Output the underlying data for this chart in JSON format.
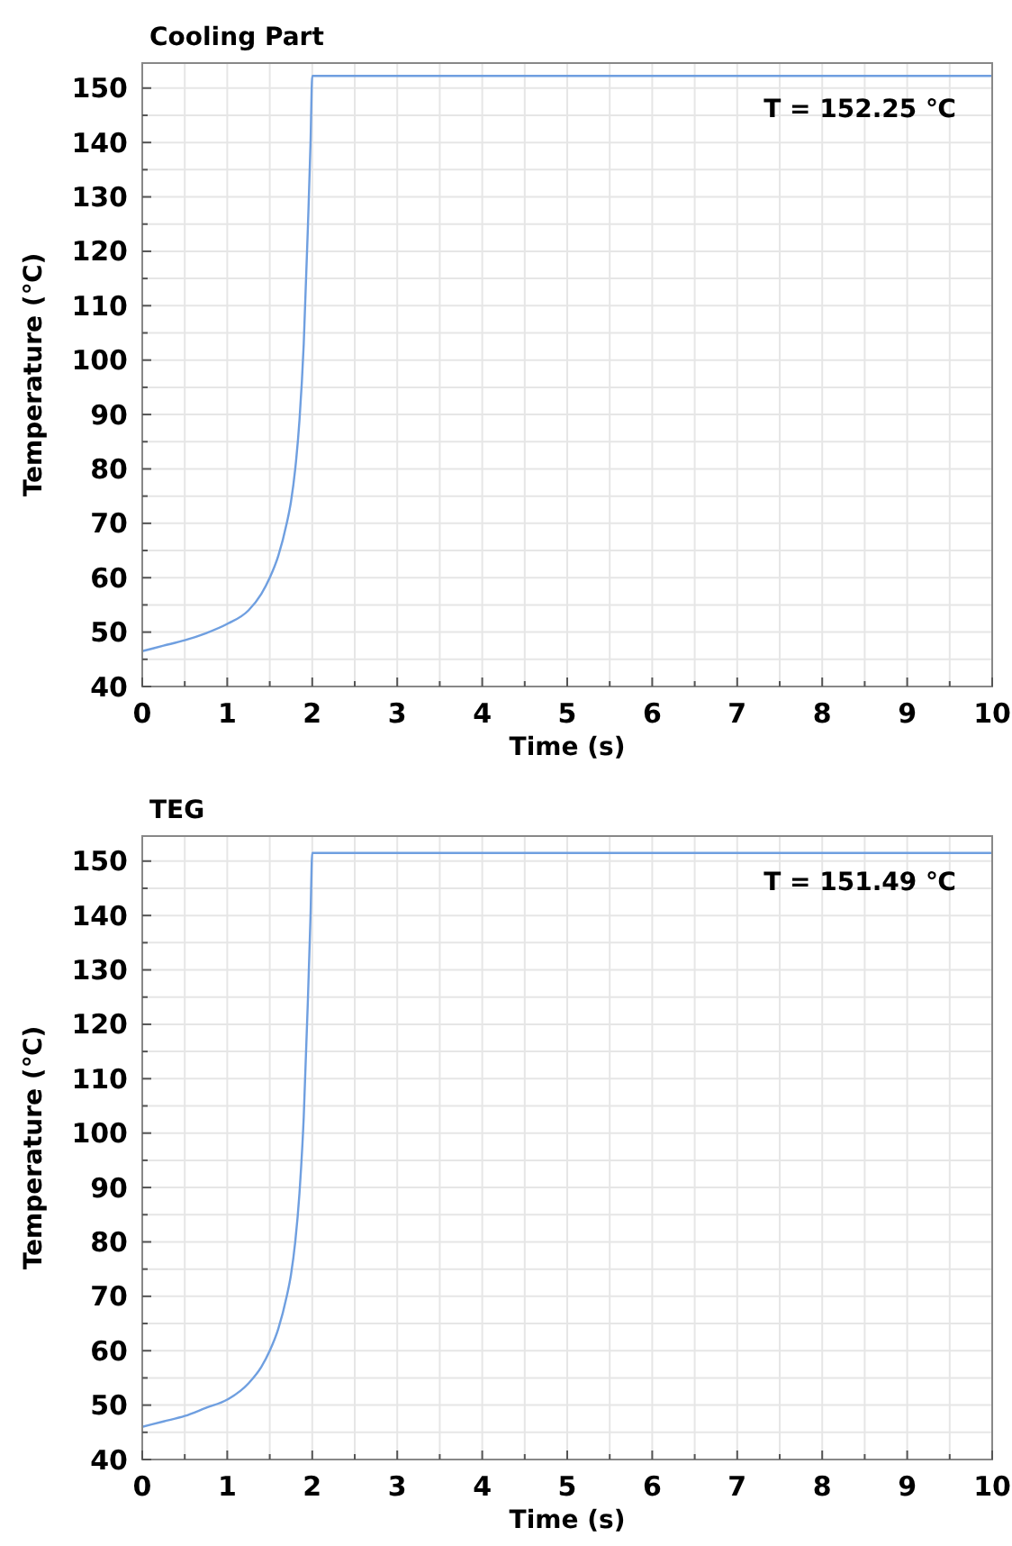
{
  "chart_data": [
    {
      "type": "line",
      "title": "Cooling Part",
      "xlabel": "Time (s)",
      "ylabel": "Temperature (℃)",
      "annotations": [
        "T =  152.25 ℃"
      ],
      "x": [
        0,
        0.25,
        0.5,
        0.75,
        1,
        1.25,
        1.4,
        1.5,
        1.6,
        1.7,
        1.75,
        1.8,
        1.85,
        1.9,
        1.95,
        1.98,
        2,
        10
      ],
      "series": [
        {
          "color": "#6f9fe0",
          "values": [
            46.5,
            47.5,
            48.5,
            49.8,
            51.5,
            54,
            57,
            60,
            64,
            70,
            74,
            80,
            89,
            103,
            125,
            140,
            152.25,
            152.25
          ]
        }
      ],
      "xlim": [
        0,
        10
      ],
      "ylim": [
        40,
        154.6
      ],
      "xticks": [
        0,
        {
          "value": 0.5,
          "label": null
        },
        1,
        {
          "value": 1.5,
          "label": null
        },
        2,
        {
          "value": 2.5,
          "label": null
        },
        3,
        {
          "value": 3.5,
          "label": null
        },
        4,
        {
          "value": 4.5,
          "label": null
        },
        5,
        {
          "value": 5.5,
          "label": null
        },
        6,
        {
          "value": 6.5,
          "label": null
        },
        7,
        {
          "value": 7.5,
          "label": null
        },
        8,
        {
          "value": 8.5,
          "label": null
        },
        9,
        {
          "value": 9.5,
          "label": null
        },
        10
      ],
      "yticks": [
        40,
        {
          "value": 45,
          "label": null
        },
        50,
        {
          "value": 55,
          "label": null
        },
        60,
        {
          "value": 65,
          "label": null
        },
        70,
        {
          "value": 75,
          "label": null
        },
        80,
        {
          "value": 85,
          "label": null
        },
        90,
        {
          "value": 95,
          "label": null
        },
        100,
        {
          "value": 105,
          "label": null
        },
        110,
        {
          "value": 115,
          "label": null
        },
        120,
        {
          "value": 125,
          "label": null
        },
        130,
        {
          "value": 135,
          "label": null
        },
        140,
        {
          "value": 145,
          "label": null
        },
        150
      ],
      "grid": true
    },
    {
      "type": "line",
      "title": "TEG",
      "xlabel": "Time (s)",
      "ylabel": "Temperature (℃)",
      "annotations": [
        "T =  151.49 ℃"
      ],
      "x": [
        0,
        0.25,
        0.5,
        0.75,
        1,
        1.25,
        1.4,
        1.5,
        1.6,
        1.7,
        1.75,
        1.8,
        1.85,
        1.9,
        1.95,
        1.98,
        2,
        10
      ],
      "series": [
        {
          "color": "#6f9fe0",
          "values": [
            46,
            47,
            48,
            49.5,
            51,
            54,
            57,
            60,
            64,
            70,
            74,
            80,
            89,
            103,
            125,
            140,
            151.49,
            151.49
          ]
        }
      ],
      "xlim": [
        0,
        10
      ],
      "ylim": [
        40,
        154.6
      ],
      "xticks": [
        0,
        {
          "value": 0.5,
          "label": null
        },
        1,
        {
          "value": 1.5,
          "label": null
        },
        2,
        {
          "value": 2.5,
          "label": null
        },
        3,
        {
          "value": 3.5,
          "label": null
        },
        4,
        {
          "value": 4.5,
          "label": null
        },
        5,
        {
          "value": 5.5,
          "label": null
        },
        6,
        {
          "value": 6.5,
          "label": null
        },
        7,
        {
          "value": 7.5,
          "label": null
        },
        8,
        {
          "value": 8.5,
          "label": null
        },
        9,
        {
          "value": 9.5,
          "label": null
        },
        10
      ],
      "yticks": [
        40,
        {
          "value": 45,
          "label": null
        },
        50,
        {
          "value": 55,
          "label": null
        },
        60,
        {
          "value": 65,
          "label": null
        },
        70,
        {
          "value": 75,
          "label": null
        },
        80,
        {
          "value": 85,
          "label": null
        },
        90,
        {
          "value": 95,
          "label": null
        },
        100,
        {
          "value": 105,
          "label": null
        },
        110,
        {
          "value": 115,
          "label": null
        },
        120,
        {
          "value": 125,
          "label": null
        },
        130,
        {
          "value": 135,
          "label": null
        },
        140,
        {
          "value": 145,
          "label": null
        },
        150
      ],
      "grid": true
    }
  ]
}
